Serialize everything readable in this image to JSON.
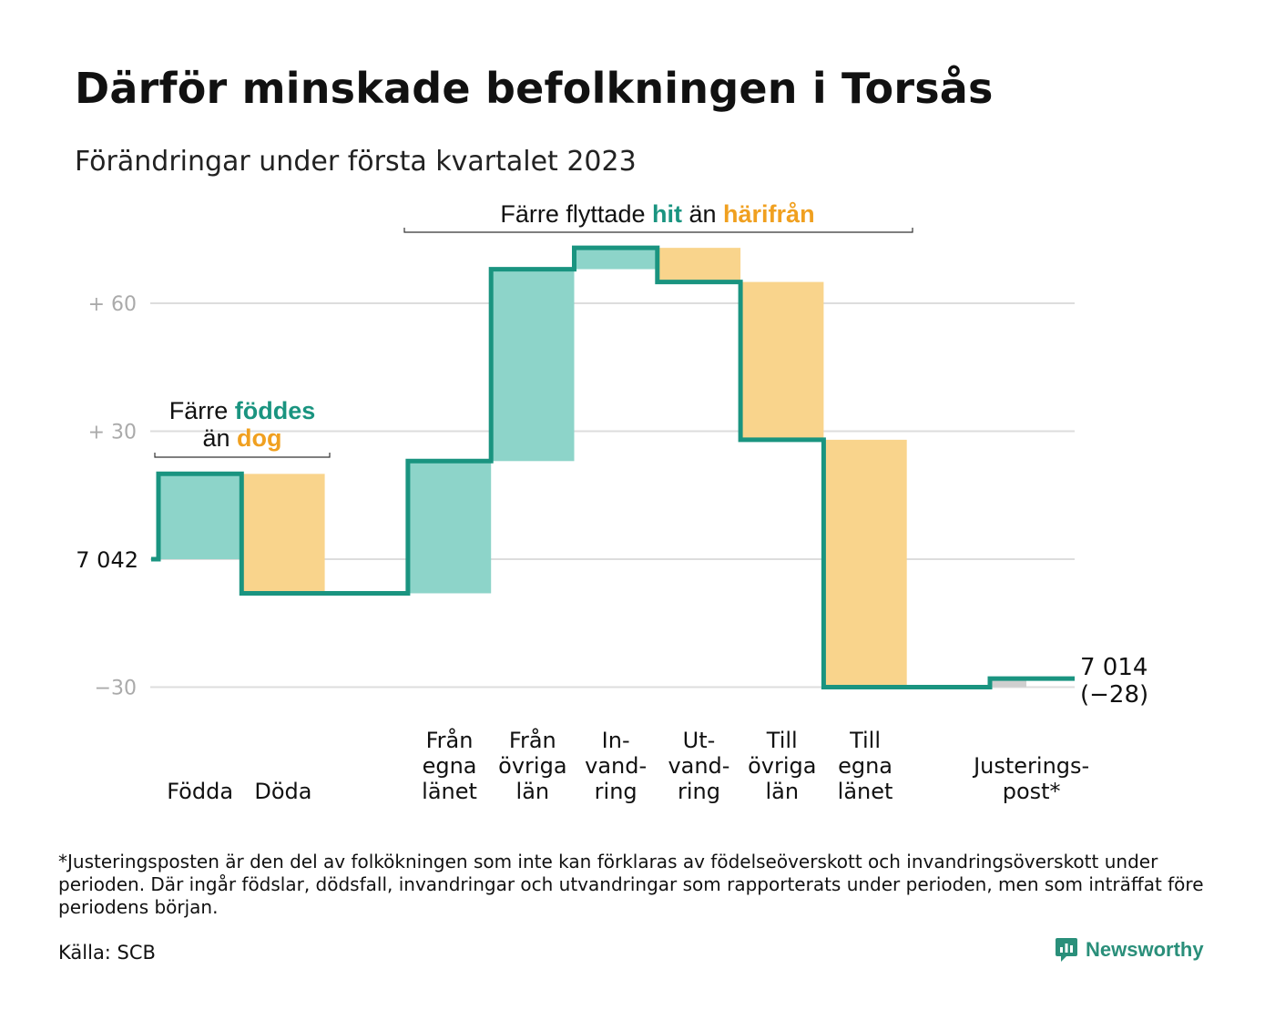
{
  "title": "Därför minskade befolkningen i Torsås",
  "subtitle": "Förändringar under första kvartalet 2023",
  "chart_data": {
    "type": "waterfall",
    "start": 7042,
    "start_label": "7 042",
    "end_label": "7 014",
    "end_change_label": "(−28)",
    "ylim": [
      -33,
      78
    ],
    "yticks": [
      {
        "value": -30,
        "label": "−30"
      },
      {
        "value": 0,
        "label": ""
      },
      {
        "value": 30,
        "label": "+ 30"
      },
      {
        "value": 60,
        "label": "+ 60"
      }
    ],
    "steps": [
      {
        "key": "fodda",
        "label_lines": [
          "Födda"
        ],
        "value": 20,
        "kind": "in"
      },
      {
        "key": "doda",
        "label_lines": [
          "Döda"
        ],
        "value": -28,
        "kind": "out"
      },
      {
        "key": "gap",
        "label_lines": [],
        "value": 0,
        "kind": "none"
      },
      {
        "key": "fran_egna",
        "label_lines": [
          "Från",
          "egna",
          "länet"
        ],
        "value": 31,
        "kind": "in"
      },
      {
        "key": "fran_ovriga",
        "label_lines": [
          "Från",
          "övriga",
          "län"
        ],
        "value": 45,
        "kind": "in"
      },
      {
        "key": "invandring",
        "label_lines": [
          "In-",
          "vand-",
          "ring"
        ],
        "value": 5,
        "kind": "in"
      },
      {
        "key": "utvandring",
        "label_lines": [
          "Ut-",
          "vand-",
          "ring"
        ],
        "value": -8,
        "kind": "out"
      },
      {
        "key": "till_ovriga",
        "label_lines": [
          "Till",
          "övriga",
          "län"
        ],
        "value": -37,
        "kind": "out"
      },
      {
        "key": "till_egna",
        "label_lines": [
          "Till",
          "egna",
          "länet"
        ],
        "value": -58,
        "kind": "out"
      },
      {
        "key": "gap2",
        "label_lines": [],
        "value": 0,
        "kind": "none"
      },
      {
        "key": "justering",
        "label_lines": [
          "Justerings-",
          "post*"
        ],
        "value": 2,
        "kind": "adj"
      }
    ],
    "colors": {
      "in_fill": "#8dd4c9",
      "out_fill": "#f9d48c",
      "adj_fill": "#cfcfcf",
      "line": "#1a9480",
      "grid": "#dddddd",
      "hit_text": "#1a9480",
      "harifran_text": "#f0a020"
    },
    "annotations": {
      "born": {
        "prefix": "Färre ",
        "highlight1": "föddes",
        "mid": "än ",
        "highlight2": "dog"
      },
      "moved": {
        "prefix": "Färre flyttade ",
        "highlight1": "hit",
        "mid": " än ",
        "highlight2": "härifrån"
      }
    }
  },
  "footnote": "*Justeringsposten är den del av folkökningen som inte kan förklaras av födelseöverskott och invandringsöverskott under perioden. Där ingår födslar, dödsfall, invandringar och utvandringar som rapporterats under perioden, men som inträffat före periodens början.",
  "source": "Källa: SCB",
  "brand": {
    "name": "Newsworthy",
    "icon": "newsworthy-logo-icon"
  }
}
